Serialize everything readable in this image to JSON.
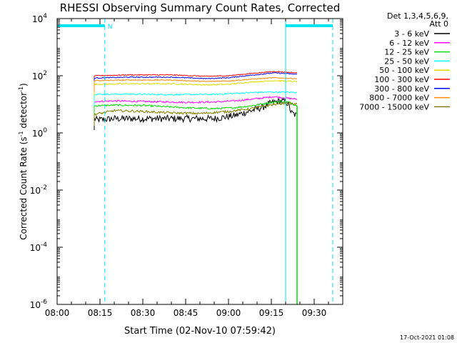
{
  "chart_data": {
    "type": "line",
    "title": "RHESSI Observing Summary Count Rates, Corrected",
    "xlabel": "Start Time (02-Nov-10 07:59:42)",
    "ylabel": "Corrected Count Rate (s",
    "ylabel_sup1": "-1",
    "ylabel_mid": " detector",
    "ylabel_sup2": "-1",
    "ylabel_end": ")",
    "x_ticks": [
      "08:00",
      "08:15",
      "08:30",
      "08:45",
      "09:00",
      "09:15",
      "09:30"
    ],
    "y_ticks": [
      {
        "exp": "4"
      },
      {
        "exp": "2"
      },
      {
        "exp": "0"
      },
      {
        "exp": "-2"
      },
      {
        "exp": "-4"
      },
      {
        "exp": "-6"
      }
    ],
    "y_tick_base": "10",
    "y_scale": "log",
    "xlim_minutes_after_0800": [
      0,
      100
    ],
    "ylim_log10": [
      -6,
      4
    ],
    "grid": false,
    "legend_header": [
      "Det 1,3,4,5,6,9,",
      "Att 0"
    ],
    "legend_placement": "right",
    "footer_date": "17-Oct-2021 01:08",
    "night_marker_label": "N",
    "data_window_minutes": [
      13,
      84
    ],
    "night_intervals_minutes": [
      [
        0,
        16.7
      ],
      [
        80,
        96.5
      ]
    ],
    "saa_drop_minute": 84,
    "series": [
      {
        "name": "3 - 6 keV",
        "color": "#000000",
        "profile": [
          [
            13,
            0.5
          ],
          [
            14,
            0.45
          ],
          [
            20,
            0.5
          ],
          [
            35,
            0.5
          ],
          [
            55,
            0.5
          ],
          [
            62,
            0.6
          ],
          [
            67,
            0.75
          ],
          [
            72,
            0.9
          ],
          [
            75,
            1.05
          ],
          [
            78,
            1.12
          ],
          [
            80,
            1.1
          ],
          [
            81,
            1.0
          ],
          [
            82,
            0.7
          ],
          [
            84,
            0.6
          ]
        ],
        "noise": 0.12
      },
      {
        "name": "6 - 12 keV",
        "color": "#ff00ff",
        "profile": [
          [
            13,
            1.1
          ],
          [
            20,
            1.12
          ],
          [
            30,
            1.1
          ],
          [
            45,
            1.07
          ],
          [
            55,
            1.08
          ],
          [
            62,
            1.12
          ],
          [
            70,
            1.2
          ],
          [
            76,
            1.27
          ],
          [
            80,
            1.22
          ],
          [
            84,
            1.18
          ]
        ],
        "noise": 0.03
      },
      {
        "name": "12 - 25 keV",
        "color": "#00dd00",
        "profile": [
          [
            13,
            0.95
          ],
          [
            20,
            0.97
          ],
          [
            30,
            0.96
          ],
          [
            45,
            0.88
          ],
          [
            55,
            0.85
          ],
          [
            62,
            0.88
          ],
          [
            68,
            0.95
          ],
          [
            74,
            1.05
          ],
          [
            78,
            1.1
          ],
          [
            81,
            1.08
          ],
          [
            84,
            0.95
          ]
        ],
        "noise": 0.03
      },
      {
        "name": "25 - 50 keV",
        "color": "#00ffff",
        "profile": [
          [
            13,
            1.35
          ],
          [
            25,
            1.36
          ],
          [
            40,
            1.34
          ],
          [
            55,
            1.35
          ],
          [
            62,
            1.38
          ],
          [
            70,
            1.42
          ],
          [
            77,
            1.43
          ],
          [
            84,
            1.42
          ]
        ],
        "noise": 0.025
      },
      {
        "name": "50 - 100 keV",
        "color": "#dddd00",
        "profile": [
          [
            13,
            1.7
          ],
          [
            25,
            1.72
          ],
          [
            40,
            1.72
          ],
          [
            52,
            1.68
          ],
          [
            60,
            1.7
          ],
          [
            68,
            1.78
          ],
          [
            76,
            1.83
          ],
          [
            84,
            1.8
          ]
        ],
        "noise": 0.02
      },
      {
        "name": "100 - 300 keV",
        "color": "#ff0000",
        "profile": [
          [
            13,
            2.0
          ],
          [
            25,
            2.03
          ],
          [
            40,
            2.03
          ],
          [
            52,
            1.98
          ],
          [
            60,
            2.0
          ],
          [
            68,
            2.08
          ],
          [
            76,
            2.15
          ],
          [
            84,
            2.1
          ]
        ],
        "noise": 0.015
      },
      {
        "name": "300 - 800 keV",
        "color": "#0000ff",
        "profile": [
          [
            13,
            1.92
          ],
          [
            25,
            1.95
          ],
          [
            40,
            1.95
          ],
          [
            52,
            1.9
          ],
          [
            60,
            1.93
          ],
          [
            68,
            2.02
          ],
          [
            76,
            2.1
          ],
          [
            84,
            2.05
          ]
        ],
        "noise": 0.015
      },
      {
        "name": "800 - 7000 keV",
        "color": "#ff8800",
        "profile": [
          [
            13,
            1.83
          ],
          [
            25,
            1.85
          ],
          [
            40,
            1.85
          ],
          [
            52,
            1.8
          ],
          [
            60,
            1.82
          ],
          [
            68,
            1.88
          ],
          [
            76,
            1.93
          ],
          [
            84,
            1.9
          ]
        ],
        "noise": 0.015
      },
      {
        "name": "7000 - 15000 keV",
        "color": "#808000",
        "profile": [
          [
            13,
            0.65
          ],
          [
            16,
            0.7
          ],
          [
            20,
            0.78
          ],
          [
            30,
            0.75
          ],
          [
            40,
            0.7
          ],
          [
            50,
            0.68
          ],
          [
            60,
            0.75
          ],
          [
            68,
            0.85
          ],
          [
            75,
            0.98
          ],
          [
            80,
            1.05
          ],
          [
            84,
            1.0
          ]
        ],
        "noise": 0.04
      }
    ]
  }
}
